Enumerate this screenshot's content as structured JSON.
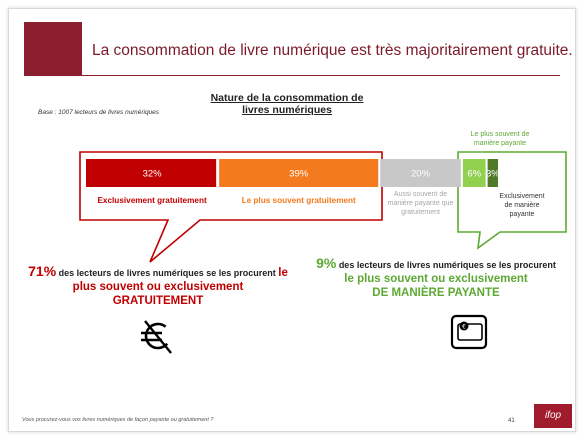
{
  "title": "La consommation de livre numérique est très majoritairement gratuite.",
  "base_note": "Base : 1007 lecteurs de livres numériques",
  "chart_data": {
    "type": "bar",
    "orientation": "horizontal-stacked",
    "title": "Nature de la consommation de livres numériques",
    "segments": [
      {
        "label": "Exclusivement gratuitement",
        "value": 32,
        "value_label": "32%",
        "color": "#c00000",
        "label_color": "#c00000"
      },
      {
        "label": "Le plus souvent gratuitement",
        "value": 39,
        "value_label": "39%",
        "color": "#f47a20",
        "label_color": "#f47a20"
      },
      {
        "label": "Aussi souvent de manière payante que gratuitement",
        "value": 20,
        "value_label": "20%",
        "color": "#c8c8c8",
        "label_color": "#a6a6a6"
      },
      {
        "label": "Le plus souvent de manière payante",
        "value": 6,
        "value_label": "6%",
        "color": "#92d050",
        "label_color": "#5ea834"
      },
      {
        "label": "Exclusivement de manière payante",
        "value": 3,
        "value_label": "3%",
        "color": "#4f7a28",
        "label_color": "#333333"
      }
    ],
    "xlim": [
      0,
      100
    ],
    "legend": "labels near segments"
  },
  "callout_left": {
    "pct": "71%",
    "text1": " des lecteurs de livres numériques se les procurent ",
    "highlight": "le plus souvent ou exclusivement GRATUITEMENT"
  },
  "callout_right": {
    "pct": "9%",
    "text1": " des lecteurs de livres numériques se les procurent ",
    "highlight1": "le plus souvent ou exclusivement",
    "highlight2": "DE MANIÈRE PAYANTE"
  },
  "icons": {
    "left": "no-euro-icon",
    "right": "wallet-icon"
  },
  "colors": {
    "brand": "#8b1e2f",
    "free": "#c00000",
    "paid": "#5ea834"
  },
  "footer_question": "Vous procurez-vous vos livres numériques de façon payante ou gratuitement ?",
  "page_number": "41",
  "logo_text": "ifop"
}
